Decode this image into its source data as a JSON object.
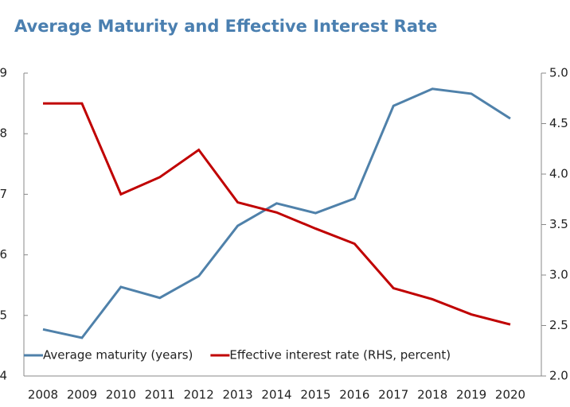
{
  "chart_data": {
    "type": "line",
    "title": "Average Maturity and Effective Interest Rate",
    "categories": [
      "2008",
      "2009",
      "2010",
      "2011",
      "2012",
      "2013",
      "2014",
      "2015",
      "2016",
      "2017",
      "2018",
      "2019",
      "2020"
    ],
    "series": [
      {
        "name": "Average maturity (years)",
        "color": "#4f81aa",
        "values": [
          4.77,
          4.63,
          5.47,
          5.29,
          5.65,
          6.48,
          6.85,
          6.69,
          6.93,
          8.46,
          8.74,
          8.66,
          8.25
        ]
      },
      {
        "name": "Effective interest rate (RHS, percent)",
        "color": "#c00000",
        "axis": "y2",
        "values": [
          4.7,
          4.7,
          3.8,
          3.97,
          4.24,
          3.72,
          3.62,
          3.46,
          3.31,
          2.87,
          2.76,
          2.61,
          2.51
        ]
      }
    ],
    "ylim": [
      4,
      9
    ],
    "yticks": [
      4,
      5,
      6,
      7,
      8,
      9
    ],
    "y2lim": [
      2,
      5
    ],
    "y2ticks": [
      {
        "value": 2,
        "label": "2.0"
      },
      {
        "value": 2.5,
        "label": "2.5"
      },
      {
        "value": 3,
        "label": "3.0"
      },
      {
        "value": 3.5,
        "label": "3.5"
      },
      {
        "value": 4,
        "label": "4.0"
      },
      {
        "value": 4.5,
        "label": "4.5"
      },
      {
        "value": 5,
        "label": "5.0"
      }
    ],
    "legend": "lower left"
  }
}
